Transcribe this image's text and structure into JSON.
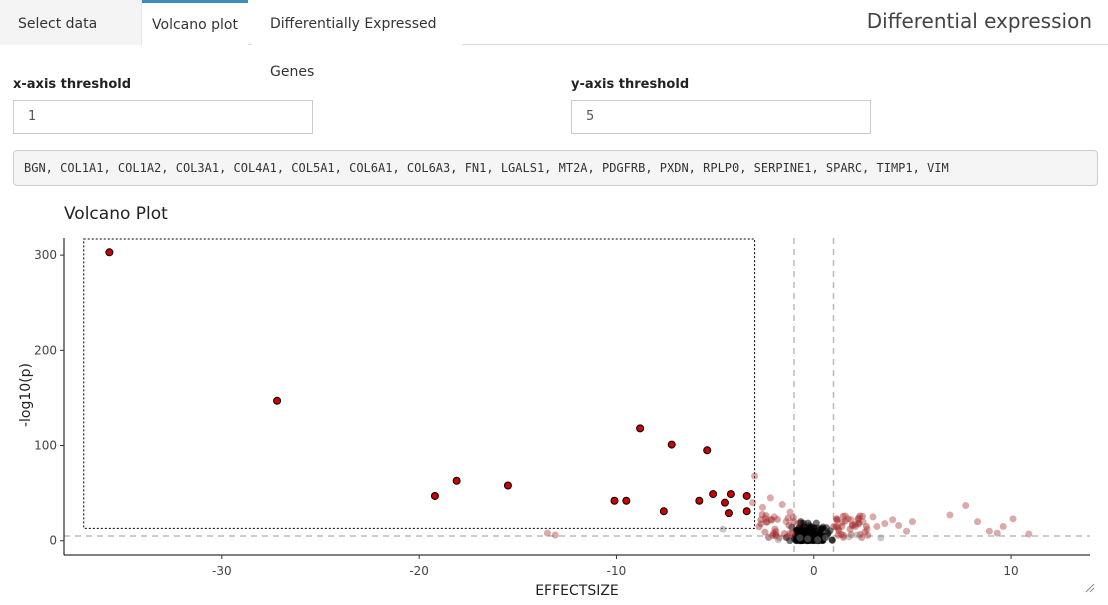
{
  "tabs": [
    {
      "label": "Select data"
    },
    {
      "label": "Volcano plot"
    },
    {
      "label": "Differentially Expressed Genes"
    }
  ],
  "app_title": "Differential expression",
  "controls": {
    "x_threshold_label": "x-axis threshold",
    "x_threshold_value": "1",
    "y_threshold_label": "y-axis threshold",
    "y_threshold_value": "5"
  },
  "selected_genes": "BGN, COL1A1, COL1A2, COL3A1, COL4A1, COL5A1, COL6A1, COL6A3, FN1, LGALS1, MT2A, PDGFRB, PXDN, RPLP0, SERPINE1, SPARC, TIMP1, VIM",
  "colors": {
    "accent": "#3c8dbc",
    "selected_point": "#cc0000",
    "significant_point": "#a52a2a",
    "nonsig_point": "#888888"
  },
  "chart_data": {
    "type": "scatter",
    "title": "Volcano Plot",
    "xlabel": "EFFECTSIZE",
    "ylabel": "-log10(p)",
    "xticks": [
      -30,
      -20,
      -10,
      0,
      10
    ],
    "yticks": [
      0,
      100,
      200,
      300
    ],
    "xlim": [
      -38,
      14
    ],
    "ylim": [
      -15,
      318
    ],
    "thresholds": {
      "x": 1,
      "y": 5
    },
    "selection_box": {
      "x": [
        -37,
        -3
      ],
      "y": [
        13,
        317
      ]
    },
    "selected_points": [
      {
        "x": -35.7,
        "y": 303
      },
      {
        "x": -27.2,
        "y": 147
      },
      {
        "x": -19.2,
        "y": 47
      },
      {
        "x": -18.1,
        "y": 63
      },
      {
        "x": -15.5,
        "y": 58
      },
      {
        "x": -10.1,
        "y": 42
      },
      {
        "x": -9.5,
        "y": 42
      },
      {
        "x": -8.8,
        "y": 118
      },
      {
        "x": -7.6,
        "y": 31
      },
      {
        "x": -7.2,
        "y": 101
      },
      {
        "x": -5.8,
        "y": 42
      },
      {
        "x": -5.4,
        "y": 95
      },
      {
        "x": -5.1,
        "y": 49
      },
      {
        "x": -4.5,
        "y": 40
      },
      {
        "x": -4.3,
        "y": 29
      },
      {
        "x": -4.2,
        "y": 49
      },
      {
        "x": -3.4,
        "y": 47
      },
      {
        "x": -3.4,
        "y": 31
      }
    ],
    "significant_points": [
      {
        "x": 2.1,
        "y": 17
      },
      {
        "x": 2.5,
        "y": 20
      },
      {
        "x": 3.0,
        "y": 25
      },
      {
        "x": 3.2,
        "y": 15
      },
      {
        "x": 3.6,
        "y": 18
      },
      {
        "x": 4.0,
        "y": 22
      },
      {
        "x": 4.3,
        "y": 16
      },
      {
        "x": 5.0,
        "y": 20
      },
      {
        "x": 6.9,
        "y": 27
      },
      {
        "x": 7.7,
        "y": 37
      },
      {
        "x": 8.3,
        "y": 20
      },
      {
        "x": 8.9,
        "y": 10
      },
      {
        "x": 9.6,
        "y": 15
      },
      {
        "x": 10.1,
        "y": 23
      },
      {
        "x": 10.9,
        "y": 7
      },
      {
        "x": 9.3,
        "y": 8
      },
      {
        "x": 1.6,
        "y": 26
      },
      {
        "x": 1.9,
        "y": 22
      },
      {
        "x": 2.7,
        "y": 12
      },
      {
        "x": -1.2,
        "y": 30
      },
      {
        "x": -1.6,
        "y": 38
      },
      {
        "x": -2.0,
        "y": 25
      },
      {
        "x": -2.6,
        "y": 35
      },
      {
        "x": -3.0,
        "y": 68
      },
      {
        "x": -2.2,
        "y": 45
      },
      {
        "x": -1.4,
        "y": 20
      },
      {
        "x": -13.5,
        "y": 8
      },
      {
        "x": -13.1,
        "y": 6
      },
      {
        "x": -3.1,
        "y": 40
      },
      {
        "x": -0.8,
        "y": 18
      },
      {
        "x": 1.2,
        "y": 15
      },
      {
        "x": 4.7,
        "y": 10
      }
    ],
    "nonsignificant_points": [
      {
        "x": -0.7,
        "y": 3
      },
      {
        "x": -0.3,
        "y": 2
      },
      {
        "x": 0.2,
        "y": 1
      },
      {
        "x": 0.6,
        "y": 3
      },
      {
        "x": -2.3,
        "y": 4
      },
      {
        "x": 1.8,
        "y": 4
      },
      {
        "x": 3.4,
        "y": 3
      },
      {
        "x": -4.6,
        "y": 12
      },
      {
        "x": 2.2,
        "y": 6
      },
      {
        "x": -1.8,
        "y": 1
      }
    ]
  }
}
